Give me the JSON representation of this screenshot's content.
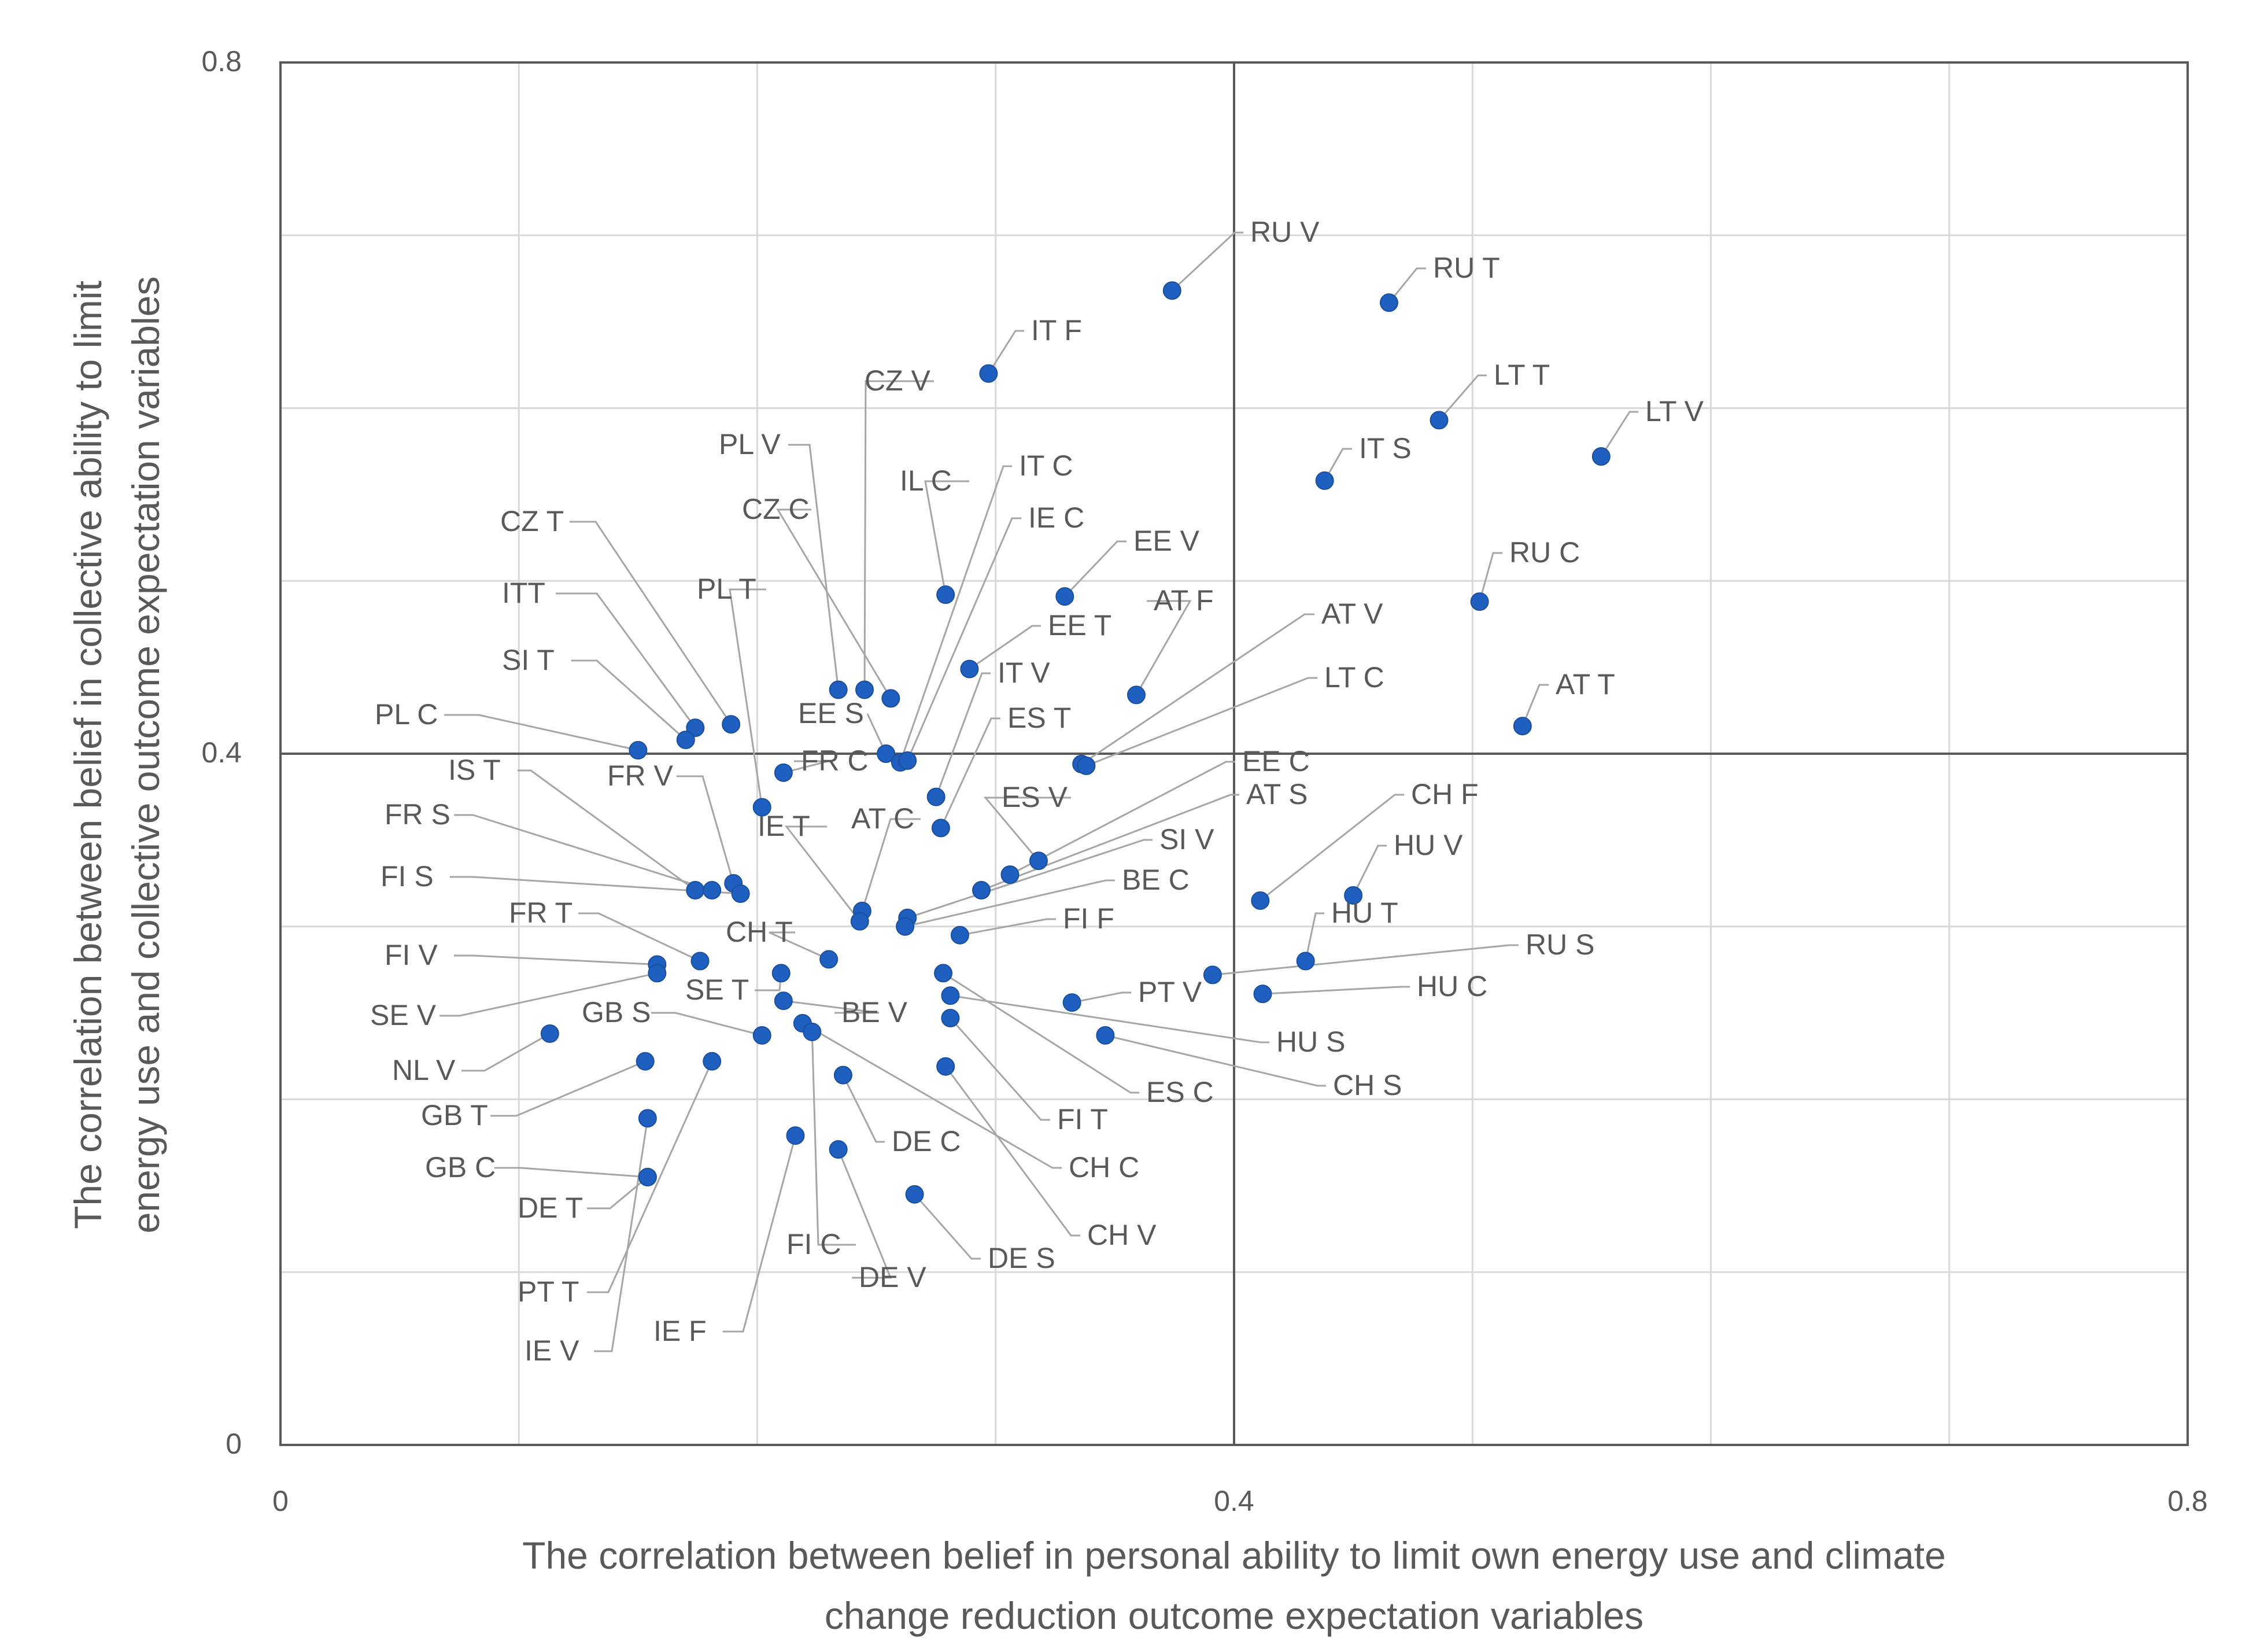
{
  "chart_data": {
    "type": "scatter",
    "title": "",
    "xlabel": "The correlation between belief in personal ability to limit own energy use and climate change reduction outcome expectation variables",
    "ylabel": "The correlation between belief in collective ability to limit energy use and collective outcome expectation variables",
    "xlim": [
      0,
      0.8
    ],
    "ylim": [
      0,
      0.8
    ],
    "xticks": [
      "0",
      "0.4",
      "0.8"
    ],
    "yticks": [
      "0",
      "0.4",
      "0.8"
    ],
    "grid_step": 0.1,
    "quadrant_lines": {
      "x": 0.4,
      "y": 0.4
    },
    "marker_color": "#1f5fbf",
    "points": [
      {
        "label": "RU V",
        "x": 0.374,
        "y": 0.668
      },
      {
        "label": "RU T",
        "x": 0.465,
        "y": 0.661
      },
      {
        "label": "IT F",
        "x": 0.297,
        "y": 0.62
      },
      {
        "label": "LT T",
        "x": 0.486,
        "y": 0.593
      },
      {
        "label": "LT V",
        "x": 0.554,
        "y": 0.572
      },
      {
        "label": "IT S",
        "x": 0.438,
        "y": 0.558
      },
      {
        "label": "RU C",
        "x": 0.503,
        "y": 0.488
      },
      {
        "label": "EE V",
        "x": 0.329,
        "y": 0.491
      },
      {
        "label": "IL C",
        "x": 0.279,
        "y": 0.492
      },
      {
        "label": "EE T",
        "x": 0.289,
        "y": 0.449
      },
      {
        "label": "AT F",
        "x": 0.359,
        "y": 0.434
      },
      {
        "label": "AT T",
        "x": 0.521,
        "y": 0.416
      },
      {
        "label": "CZ V",
        "x": 0.245,
        "y": 0.437
      },
      {
        "label": "PL V",
        "x": 0.234,
        "y": 0.437
      },
      {
        "label": "CZ C",
        "x": 0.256,
        "y": 0.432
      },
      {
        "label": "CZ T",
        "x": 0.189,
        "y": 0.417
      },
      {
        "label": "ITT",
        "x": 0.174,
        "y": 0.415
      },
      {
        "label": "SI T",
        "x": 0.17,
        "y": 0.408
      },
      {
        "label": "PL C",
        "x": 0.15,
        "y": 0.402
      },
      {
        "label": "EE S",
        "x": 0.254,
        "y": 0.4
      },
      {
        "label": "IT C",
        "x": 0.26,
        "y": 0.395
      },
      {
        "label": "IE C",
        "x": 0.263,
        "y": 0.396
      },
      {
        "label": "AT V",
        "x": 0.336,
        "y": 0.394
      },
      {
        "label": "LT C",
        "x": 0.338,
        "y": 0.393
      },
      {
        "label": "FR C",
        "x": 0.211,
        "y": 0.389
      },
      {
        "label": "PL T",
        "x": 0.202,
        "y": 0.369
      },
      {
        "label": "IT V",
        "x": 0.275,
        "y": 0.375
      },
      {
        "label": "ES T",
        "x": 0.277,
        "y": 0.357
      },
      {
        "label": "ES V",
        "x": 0.318,
        "y": 0.338
      },
      {
        "label": "EE C",
        "x": 0.306,
        "y": 0.33
      },
      {
        "label": "AT S",
        "x": 0.294,
        "y": 0.321
      },
      {
        "label": "IS T",
        "x": 0.174,
        "y": 0.321
      },
      {
        "label": "FR S",
        "x": 0.181,
        "y": 0.321
      },
      {
        "label": "FR V",
        "x": 0.19,
        "y": 0.325
      },
      {
        "label": "FI S",
        "x": 0.193,
        "y": 0.319
      },
      {
        "label": "AT C",
        "x": 0.244,
        "y": 0.309
      },
      {
        "label": "IE T",
        "x": 0.243,
        "y": 0.303
      },
      {
        "label": "SI V",
        "x": 0.263,
        "y": 0.305
      },
      {
        "label": "BE C",
        "x": 0.262,
        "y": 0.3
      },
      {
        "label": "CH F",
        "x": 0.411,
        "y": 0.315
      },
      {
        "label": "HU V",
        "x": 0.45,
        "y": 0.318
      },
      {
        "label": "FI F",
        "x": 0.285,
        "y": 0.295
      },
      {
        "label": "HU T",
        "x": 0.43,
        "y": 0.28
      },
      {
        "label": "RU S",
        "x": 0.391,
        "y": 0.272
      },
      {
        "label": "HU C",
        "x": 0.412,
        "y": 0.261
      },
      {
        "label": "FR T",
        "x": 0.176,
        "y": 0.28
      },
      {
        "label": "CH T",
        "x": 0.23,
        "y": 0.281
      },
      {
        "label": "FI V",
        "x": 0.158,
        "y": 0.278
      },
      {
        "label": "SE V",
        "x": 0.158,
        "y": 0.273
      },
      {
        "label": "SE T",
        "x": 0.21,
        "y": 0.273
      },
      {
        "label": "ES C",
        "x": 0.278,
        "y": 0.273
      },
      {
        "label": "BE V",
        "x": 0.211,
        "y": 0.257
      },
      {
        "label": "PT V",
        "x": 0.332,
        "y": 0.256
      },
      {
        "label": "HU S",
        "x": 0.281,
        "y": 0.26
      },
      {
        "label": "CH S",
        "x": 0.346,
        "y": 0.237
      },
      {
        "label": "FI T",
        "x": 0.281,
        "y": 0.247
      },
      {
        "label": "GB S",
        "x": 0.202,
        "y": 0.237
      },
      {
        "label": "NL V",
        "x": 0.113,
        "y": 0.238
      },
      {
        "label": "CH C",
        "x": 0.219,
        "y": 0.244
      },
      {
        "label": "FI C",
        "x": 0.223,
        "y": 0.239
      },
      {
        "label": "GB T",
        "x": 0.153,
        "y": 0.222
      },
      {
        "label": "PT T",
        "x": 0.181,
        "y": 0.222
      },
      {
        "label": "CH V",
        "x": 0.279,
        "y": 0.219
      },
      {
        "label": "DE C",
        "x": 0.236,
        "y": 0.214
      },
      {
        "label": "IE V",
        "x": 0.154,
        "y": 0.189
      },
      {
        "label": "IE F",
        "x": 0.216,
        "y": 0.179
      },
      {
        "label": "DE V",
        "x": 0.234,
        "y": 0.171
      },
      {
        "label": "GB C",
        "x": 0.154,
        "y": 0.155
      },
      {
        "label": "DE S",
        "x": 0.266,
        "y": 0.145
      },
      {
        "label": "DE T",
        "x": 0.154,
        "y": 0.155
      }
    ]
  }
}
